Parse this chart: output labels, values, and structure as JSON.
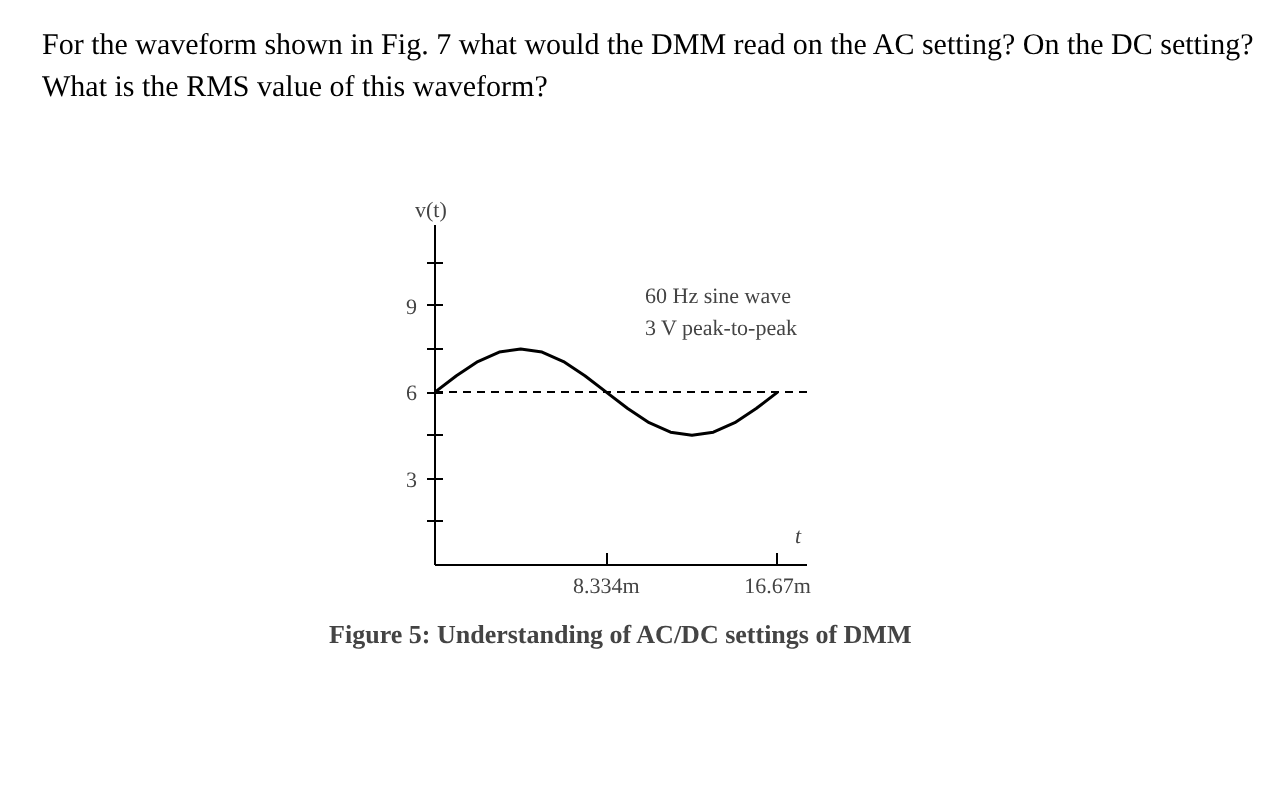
{
  "chart_data": {
    "type": "line",
    "title": "For the waveform shown in Fig. 7 what would the DMM read on the AC setting? On the DC setting? What is the RMS value of this waveform?",
    "xlabel": "t",
    "ylabel": "v(t)",
    "x": [
      0,
      1.042,
      2.084,
      3.126,
      4.168,
      5.209,
      6.251,
      7.293,
      8.334,
      9.376,
      10.418,
      11.46,
      12.502,
      13.544,
      14.586,
      15.628,
      16.67
    ],
    "series": [
      {
        "color": "#000000",
        "values": [
          6,
          6.57,
          7.06,
          7.39,
          7.5,
          7.39,
          7.06,
          6.57,
          6,
          5.43,
          4.94,
          4.61,
          4.5,
          4.61,
          4.94,
          5.43,
          6
        ]
      }
    ],
    "xlim": [
      0,
      18.1
    ],
    "ylim": [
      0,
      11.8
    ],
    "xticks": [
      {
        "value": 8.334,
        "label": "8.334m"
      },
      {
        "value": 16.67,
        "label": "16.67m"
      }
    ],
    "yticks": [
      {
        "value": 1.5,
        "label": null
      },
      3,
      {
        "value": 4.5,
        "label": null
      },
      6,
      {
        "value": 7.5,
        "label": null
      },
      9,
      {
        "value": 10.5,
        "label": null
      }
    ],
    "ref_lines": [
      {
        "axis": "y",
        "value": 6,
        "color": "#000000",
        "line_style": "dashed"
      }
    ],
    "annotations": [
      "60 Hz sine wave",
      "3 V peak-to-peak",
      "Figure 5: Understanding of AC/DC settings of DMM"
    ],
    "grid": false,
    "marker": "none",
    "line_style": "solid"
  }
}
